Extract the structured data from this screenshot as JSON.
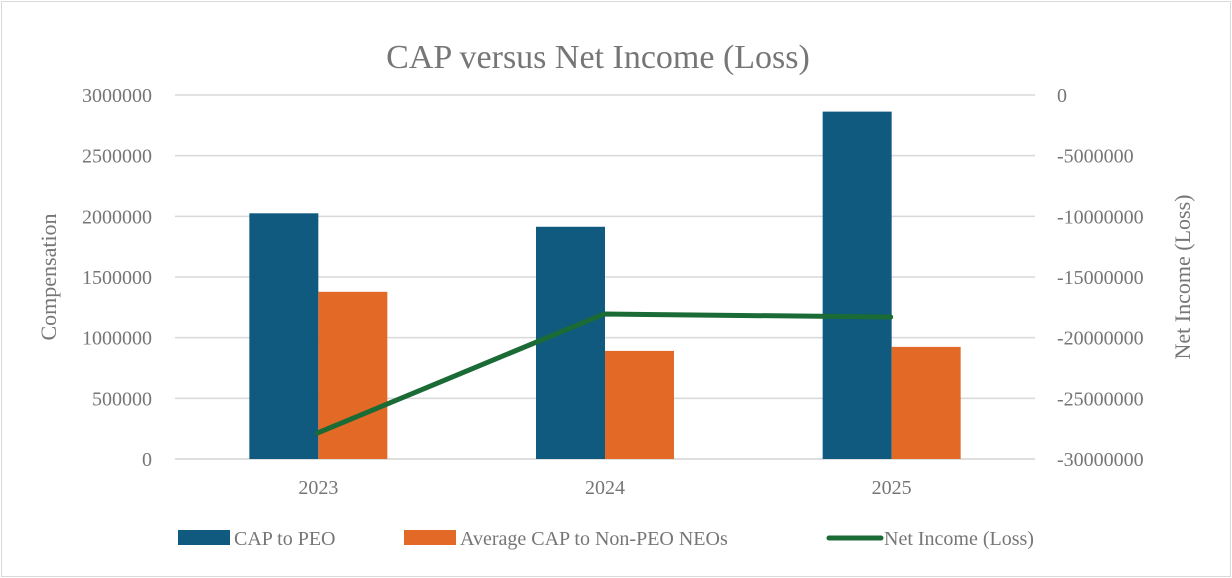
{
  "chart_data": {
    "type": "bar",
    "title": "CAP versus Net Income (Loss)",
    "categories": [
      "2023",
      "2024",
      "2025"
    ],
    "xlabel": "",
    "ylabel": "Compensation",
    "y2label": "Net Income (Loss)",
    "ylim": [
      0,
      3000000
    ],
    "y2lim": [
      -30000000,
      0
    ],
    "yticks": [
      "0",
      "500000",
      "1000000",
      "1500000",
      "2000000",
      "2500000",
      "3000000"
    ],
    "y2ticks": [
      "-30000000",
      "-25000000",
      "-20000000",
      "-15000000",
      "-10000000",
      "-5000000",
      "0"
    ],
    "grid": true,
    "legend_position": "bottom",
    "series": [
      {
        "name": "CAP to PEO",
        "type": "bar",
        "axis": "left",
        "color": "#0f5a7e",
        "values": [
          2025000,
          1914000,
          2863000
        ]
      },
      {
        "name": "Average CAP to Non-PEO NEOs",
        "type": "bar",
        "axis": "left",
        "color": "#e26a26",
        "values": [
          1378000,
          891000,
          924000
        ]
      },
      {
        "name": "Net Income (Loss)",
        "type": "line",
        "axis": "right",
        "color": "#1a6b35",
        "values": [
          -27860000,
          -18050000,
          -18300000
        ]
      }
    ]
  }
}
